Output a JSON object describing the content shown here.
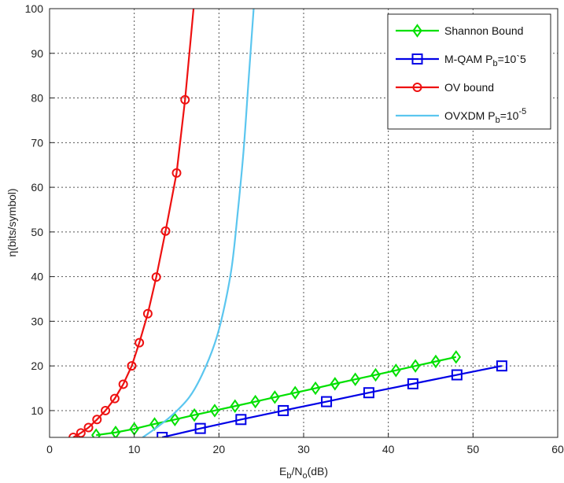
{
  "chart_data": {
    "type": "line",
    "title": "",
    "xlabel": {
      "base": "E",
      "sub1": "b",
      "mid": "/N",
      "sub2": "o",
      "tail": "(dB)"
    },
    "ylabel": "η(bits/symbol)",
    "xlim": [
      0,
      60
    ],
    "ylim": [
      4,
      100
    ],
    "xticks": [
      "0",
      "10",
      "20",
      "30",
      "40",
      "50",
      "60"
    ],
    "yticks": [
      "10",
      "20",
      "30",
      "40",
      "50",
      "60",
      "70",
      "80",
      "90",
      "100"
    ],
    "grid": true,
    "legend_position": "top-right",
    "series": [
      {
        "key": "shannon",
        "legend": {
          "base": "Shannon Bound",
          "sub": "",
          "sup": "",
          "tail": ""
        },
        "color": "#00e000",
        "marker": "diamond",
        "x": [
          5.5,
          7.8,
          10.0,
          12.4,
          14.8,
          17.1,
          19.5,
          21.9,
          24.3,
          26.6,
          29.0,
          31.4,
          33.7,
          36.1,
          38.5,
          40.9,
          43.2,
          45.6,
          48.0
        ],
        "y": [
          4.5,
          5.1,
          5.9,
          7,
          8,
          9,
          10,
          11,
          12,
          13,
          14,
          15,
          16,
          17,
          18,
          19,
          20,
          21,
          22
        ]
      },
      {
        "key": "mqam",
        "legend": {
          "base": "M-QAM P",
          "sub": "b",
          "sup": "",
          "tail": "=10`5"
        },
        "color": "#0000e6",
        "marker": "square",
        "x": [
          13.3,
          17.8,
          22.6,
          27.6,
          32.7,
          37.7,
          42.9,
          48.1,
          53.4
        ],
        "y": [
          4,
          6,
          8,
          10,
          12,
          14,
          16,
          18,
          20
        ]
      },
      {
        "key": "ov",
        "legend": {
          "base": "OV bound",
          "sub": "",
          "sup": "",
          "tail": ""
        },
        "color": "#ee1111",
        "marker": "circle",
        "x": [
          2.8,
          3.7,
          4.6,
          5.6,
          6.6,
          7.7,
          8.7,
          9.7,
          10.6,
          11.6,
          12.6,
          13.7,
          15.0,
          16.0,
          17.0
        ],
        "y": [
          4,
          5,
          6.2,
          8,
          10,
          12.7,
          15.9,
          20,
          25.2,
          31.7,
          39.9,
          50.2,
          63.2,
          79.6,
          100
        ],
        "markers_on": [
          true,
          true,
          true,
          true,
          true,
          true,
          true,
          true,
          true,
          true,
          true,
          true,
          true,
          true,
          false
        ]
      },
      {
        "key": "ovxdm",
        "legend": {
          "base": "OVXDM P",
          "sub": "b",
          "sup": "-5",
          "tail": "=10"
        },
        "color": "#5bc6ef",
        "marker": "none",
        "x": [
          11.0,
          12.5,
          14.5,
          16.5,
          18.0,
          19.5,
          20.5,
          21.5,
          22.2,
          22.9,
          23.5,
          24.1
        ],
        "y": [
          4,
          6,
          9,
          13,
          18,
          25,
          32,
          42,
          54,
          68,
          84,
          100
        ]
      }
    ]
  }
}
